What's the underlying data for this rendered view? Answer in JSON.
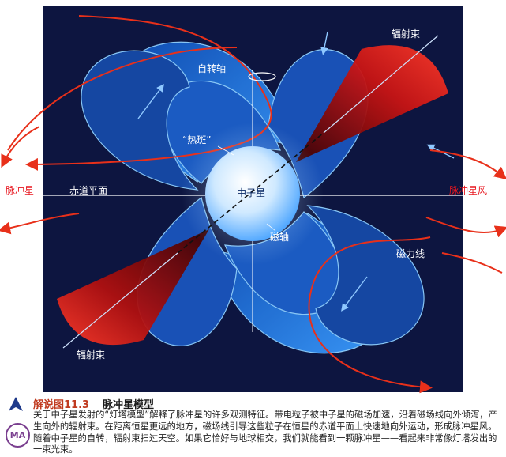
{
  "labels": {
    "rotation_axis": "自转轴",
    "hot_spot": "“热斑”",
    "neutron_star": "中子星",
    "magnetic_axis": "磁轴",
    "field_lines": "磁力线",
    "beam_top": "辐射束",
    "beam_bottom": "辐射束",
    "pulsar_left": "脉冲星",
    "equatorial_plane": "赤道平面",
    "pulsar_wind": "脉冲星风"
  },
  "caption": {
    "figure_label": "解说图11.3",
    "title": "脉冲星模型",
    "body": "关于中子星发射的“灯塔模型”解释了脉冲星的许多观测特征。带电粒子被中子星的磁场加速，沿着磁场线向外倾泻，产生向外的辐射束。在距离恒星更远的地方，磁场线引导这些粒子在恒星的赤道平面上快速地向外运动，形成脉冲星风。随着中子星的自转，辐射束扫过天空。如果它恰好与地球相交，我们就能看到一颗脉冲星——看起来非常像灯塔发出的一束光束。",
    "badge": "MA"
  },
  "colors": {
    "space_bg": "#0d1540",
    "field_blue": "#2a7be0",
    "beam_red": "#c01010",
    "wind_red": "#e8301a",
    "caption_accent": "#c03a1f"
  }
}
